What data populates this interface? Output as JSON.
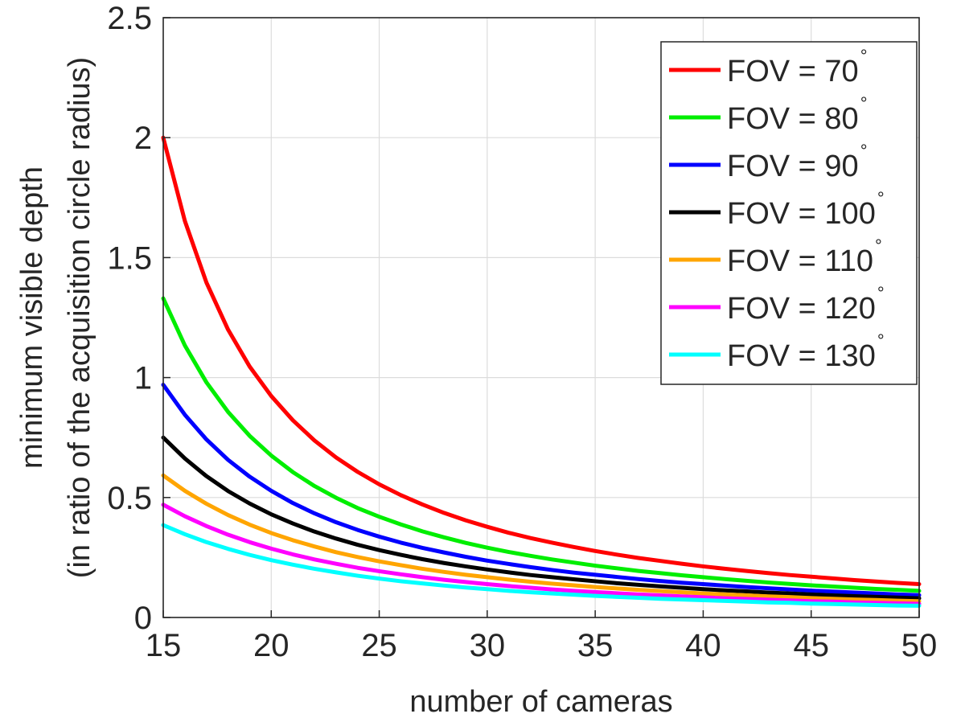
{
  "chart_data": {
    "type": "line",
    "xlabel": "number of cameras",
    "ylabel_line1": "minimum visible depth",
    "ylabel_line2": "(in ratio of the acquisition circle radius)",
    "xlim": [
      15,
      50
    ],
    "ylim": [
      0,
      2.5
    ],
    "x_ticks": [
      "15",
      "20",
      "25",
      "30",
      "35",
      "40",
      "45",
      "50"
    ],
    "y_ticks": [
      "0",
      "0.5",
      "1",
      "1.5",
      "2",
      "2.5"
    ],
    "grid": true,
    "legend_position": "top-right",
    "x": [
      15,
      16,
      17,
      18,
      19,
      20,
      21,
      22,
      23,
      24,
      25,
      26,
      27,
      28,
      29,
      30,
      31,
      32,
      33,
      34,
      35,
      36,
      37,
      38,
      39,
      40,
      41,
      42,
      43,
      44,
      45,
      46,
      47,
      48,
      49,
      50
    ],
    "series": [
      {
        "name": "FOV = 70",
        "color": "#ff0000",
        "values": [
          2.0,
          1.653,
          1.396,
          1.2,
          1.046,
          0.923,
          0.822,
          0.738,
          0.667,
          0.607,
          0.555,
          0.51,
          0.471,
          0.436,
          0.405,
          0.378,
          0.353,
          0.331,
          0.312,
          0.294,
          0.277,
          0.262,
          0.248,
          0.236,
          0.224,
          0.213,
          0.203,
          0.194,
          0.185,
          0.177,
          0.17,
          0.163,
          0.156,
          0.15,
          0.144,
          0.139
        ]
      },
      {
        "name": "FOV = 80",
        "color": "#00ee00",
        "values": [
          1.33,
          1.134,
          0.98,
          0.857,
          0.757,
          0.675,
          0.606,
          0.548,
          0.499,
          0.456,
          0.42,
          0.388,
          0.359,
          0.334,
          0.311,
          0.291,
          0.273,
          0.257,
          0.242,
          0.229,
          0.216,
          0.205,
          0.194,
          0.185,
          0.176,
          0.168,
          0.16,
          0.153,
          0.146,
          0.14,
          0.134,
          0.129,
          0.124,
          0.119,
          0.115,
          0.111
        ]
      },
      {
        "name": "FOV = 90",
        "color": "#0000ff",
        "values": [
          0.97,
          0.845,
          0.742,
          0.657,
          0.587,
          0.528,
          0.477,
          0.434,
          0.397,
          0.365,
          0.337,
          0.312,
          0.29,
          0.271,
          0.253,
          0.237,
          0.223,
          0.21,
          0.198,
          0.187,
          0.178,
          0.169,
          0.16,
          0.152,
          0.145,
          0.139,
          0.133,
          0.127,
          0.122,
          0.117,
          0.112,
          0.108,
          0.104,
          0.1,
          0.096,
          0.093
        ]
      },
      {
        "name": "FOV = 100",
        "color": "#000000",
        "values": [
          0.75,
          0.663,
          0.589,
          0.527,
          0.475,
          0.43,
          0.392,
          0.358,
          0.329,
          0.303,
          0.281,
          0.261,
          0.243,
          0.227,
          0.213,
          0.2,
          0.188,
          0.177,
          0.168,
          0.159,
          0.151,
          0.143,
          0.136,
          0.13,
          0.124,
          0.118,
          0.113,
          0.109,
          0.104,
          0.1,
          0.096,
          0.092,
          0.089,
          0.086,
          0.083,
          0.08
        ]
      },
      {
        "name": "FOV = 110",
        "color": "#ffa500",
        "values": [
          0.592,
          0.528,
          0.474,
          0.427,
          0.387,
          0.352,
          0.322,
          0.296,
          0.272,
          0.252,
          0.234,
          0.218,
          0.203,
          0.19,
          0.178,
          0.168,
          0.158,
          0.149,
          0.141,
          0.134,
          0.127,
          0.121,
          0.115,
          0.11,
          0.105,
          0.1,
          0.096,
          0.092,
          0.088,
          0.085,
          0.081,
          0.078,
          0.075,
          0.073,
          0.07,
          0.068
        ]
      },
      {
        "name": "FOV = 120",
        "color": "#ff00ff",
        "values": [
          0.47,
          0.422,
          0.381,
          0.345,
          0.314,
          0.287,
          0.263,
          0.242,
          0.224,
          0.207,
          0.193,
          0.18,
          0.168,
          0.157,
          0.148,
          0.139,
          0.131,
          0.124,
          0.117,
          0.111,
          0.106,
          0.101,
          0.096,
          0.092,
          0.088,
          0.084,
          0.08,
          0.077,
          0.074,
          0.071,
          0.068,
          0.066,
          0.063,
          0.061,
          0.059,
          0.057
        ]
      },
      {
        "name": "FOV = 130",
        "color": "#00ffff",
        "values": [
          0.385,
          0.347,
          0.314,
          0.286,
          0.261,
          0.239,
          0.22,
          0.203,
          0.188,
          0.174,
          0.162,
          0.151,
          0.142,
          0.133,
          0.125,
          0.118,
          0.111,
          0.105,
          0.1,
          0.095,
          0.09,
          0.086,
          0.082,
          0.078,
          0.075,
          0.072,
          0.069,
          0.066,
          0.063,
          0.061,
          0.058,
          0.056,
          0.054,
          0.052,
          0.05,
          0.049
        ]
      }
    ],
    "legend_degree_symbol": "°"
  }
}
